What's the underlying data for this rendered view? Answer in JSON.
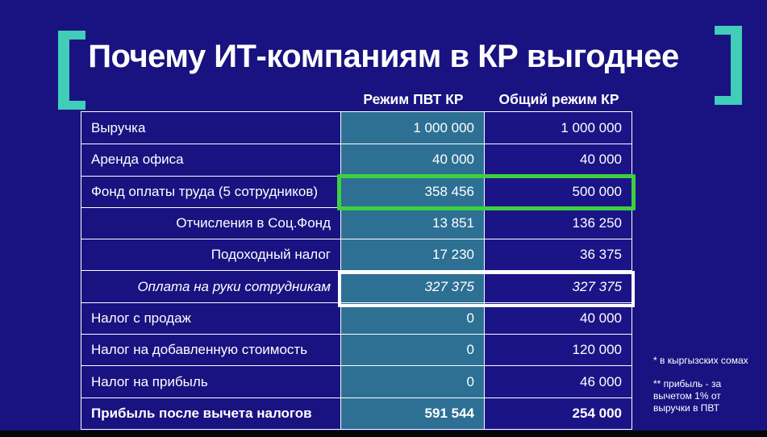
{
  "title": "Почему ИТ-компаниям в КР выгоднее",
  "columns": {
    "pvt": "Режим ПВТ КР",
    "general": "Общий режим КР"
  },
  "table": {
    "rows": [
      {
        "label": "Выручка",
        "pvt": "1 000 000",
        "general": "1 000 000"
      },
      {
        "label": "Аренда офиса",
        "pvt": "40 000",
        "general": "40 000"
      },
      {
        "label": "Фонд оплаты труда (5 сотрудников)",
        "pvt": "358 456",
        "general": "500 000"
      },
      {
        "label": "Отчисления в Соц.Фонд",
        "pvt": "13 851",
        "general": "136 250"
      },
      {
        "label": "Подоходный налог",
        "pvt": "17 230",
        "general": "36 375"
      },
      {
        "label": "Оплата на руки сотрудникам",
        "pvt": "327 375",
        "general": "327 375"
      },
      {
        "label": "Налог с продаж",
        "pvt": "0",
        "general": "40 000"
      },
      {
        "label": "Налог на добавленную стоимость",
        "pvt": "0",
        "general": "120 000"
      },
      {
        "label": "Налог на прибыль",
        "pvt": "0",
        "general": "46 000"
      },
      {
        "label": "Прибыль после вычета налогов",
        "pvt": "591 544",
        "general": "254 000"
      }
    ]
  },
  "footnotes": {
    "soms": "* в кыргызских сомах",
    "profit": "** прибыль - за вычетом 1% от выручки в ПВТ"
  },
  "colors": {
    "background": "#191281",
    "pvt_cell": "#2d7094",
    "general_cell": "#1b1486",
    "accent_teal": "#41cdb9",
    "highlight_green": "#3ed03e",
    "text": "#ffffff",
    "bottom_bar": "#060606"
  }
}
